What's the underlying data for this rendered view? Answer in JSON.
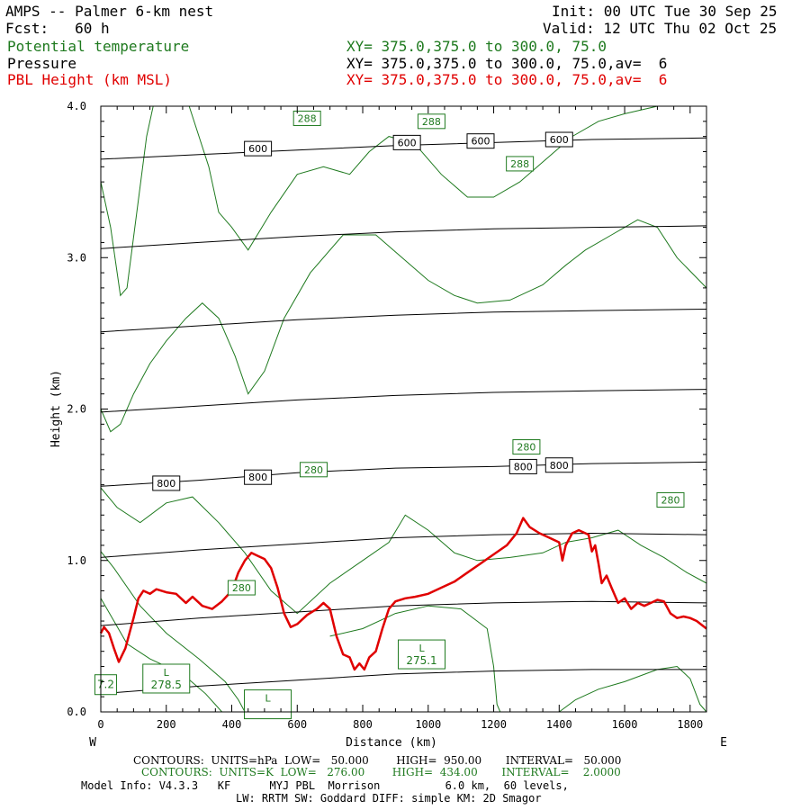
{
  "header": {
    "title": "AMPS -- Palmer 6-km nest",
    "fcst": "Fcst:   60 h",
    "init": "Init: 00 UTC Tue 30 Sep 25",
    "valid": "Valid: 12 UTC Thu 02 Oct 25",
    "fields": [
      {
        "label": "Potential temperature",
        "xy": "XY= 375.0,375.0 to 300.0, 75.0",
        "color": "#1f7a1f"
      },
      {
        "label": "Pressure",
        "xy": "XY= 375.0,375.0 to 300.0, 75.0,av=  6",
        "color": "#000000"
      },
      {
        "label": "PBL Height (km MSL)",
        "xy": "XY= 375.0,375.0 to 300.0, 75.0,av=  6",
        "color": "#e00000"
      }
    ]
  },
  "footer": {
    "contours_black": "CONTOURS:  UNITS=hPa  LOW=   50.000        HIGH=  950.00       INTERVAL=   50.000",
    "contours_green": "CONTOURS:  UNITS=K  LOW=   276.00        HIGH=  434.00       INTERVAL=    2.0000",
    "model_info": "Model Info: V4.3.3   KF      MYJ PBL  Morrison          6.0 km,  60 levels,",
    "model_info2": "LW: RRTM SW: Goddard DIFF: simple KM: 2D Smagor"
  },
  "chart_data": {
    "type": "line",
    "xlabel": "Distance (km)",
    "ylabel": "Height (km)",
    "xlim": [
      0,
      1850
    ],
    "ylim": [
      0,
      4.0
    ],
    "x_ticks": [
      0,
      200,
      400,
      600,
      800,
      1000,
      1200,
      1400,
      1600,
      1800
    ],
    "y_ticks": [
      "0.0",
      "1.0",
      "2.0",
      "3.0",
      "4.0"
    ],
    "left_end": "W",
    "right_end": "E",
    "colors": {
      "pressure": "#000000",
      "theta": "#1f7a1f",
      "pbl": "#e00000"
    },
    "pressure_contours": [
      {
        "points": [
          [
            0,
            0.12
          ],
          [
            300,
            0.17
          ],
          [
            600,
            0.21
          ],
          [
            900,
            0.25
          ],
          [
            1200,
            0.27
          ],
          [
            1500,
            0.28
          ],
          [
            1850,
            0.28
          ]
        ]
      },
      {
        "points": [
          [
            0,
            0.57
          ],
          [
            300,
            0.62
          ],
          [
            600,
            0.66
          ],
          [
            900,
            0.7
          ],
          [
            1200,
            0.72
          ],
          [
            1500,
            0.73
          ],
          [
            1850,
            0.72
          ]
        ]
      },
      {
        "points": [
          [
            0,
            1.02
          ],
          [
            300,
            1.07
          ],
          [
            600,
            1.11
          ],
          [
            900,
            1.15
          ],
          [
            1200,
            1.17
          ],
          [
            1500,
            1.18
          ],
          [
            1850,
            1.17
          ]
        ]
      },
      {
        "points": [
          [
            0,
            1.49
          ],
          [
            300,
            1.53
          ],
          [
            600,
            1.58
          ],
          [
            900,
            1.61
          ],
          [
            1200,
            1.62
          ],
          [
            1500,
            1.64
          ],
          [
            1850,
            1.65
          ]
        ]
      },
      {
        "points": [
          [
            0,
            1.98
          ],
          [
            300,
            2.02
          ],
          [
            600,
            2.06
          ],
          [
            900,
            2.09
          ],
          [
            1200,
            2.11
          ],
          [
            1500,
            2.12
          ],
          [
            1850,
            2.13
          ]
        ]
      },
      {
        "points": [
          [
            0,
            2.51
          ],
          [
            300,
            2.55
          ],
          [
            600,
            2.59
          ],
          [
            900,
            2.62
          ],
          [
            1200,
            2.64
          ],
          [
            1500,
            2.65
          ],
          [
            1850,
            2.66
          ]
        ]
      },
      {
        "points": [
          [
            0,
            3.06
          ],
          [
            300,
            3.1
          ],
          [
            600,
            3.14
          ],
          [
            900,
            3.17
          ],
          [
            1200,
            3.19
          ],
          [
            1500,
            3.2
          ],
          [
            1850,
            3.21
          ]
        ]
      },
      {
        "points": [
          [
            0,
            3.65
          ],
          [
            300,
            3.68
          ],
          [
            600,
            3.71
          ],
          [
            900,
            3.74
          ],
          [
            1200,
            3.76
          ],
          [
            1500,
            3.78
          ],
          [
            1850,
            3.79
          ]
        ]
      }
    ],
    "pressure_labels": [
      {
        "text": "600",
        "x": 480,
        "y": 3.72
      },
      {
        "text": "600",
        "x": 935,
        "y": 3.76
      },
      {
        "text": "600",
        "x": 1160,
        "y": 3.77
      },
      {
        "text": "600",
        "x": 1400,
        "y": 3.78
      },
      {
        "text": "800",
        "x": 200,
        "y": 1.51
      },
      {
        "text": "800",
        "x": 480,
        "y": 1.55
      },
      {
        "text": "800",
        "x": 1290,
        "y": 1.62
      },
      {
        "text": "800",
        "x": 1400,
        "y": 1.63
      }
    ],
    "theta_contours": [
      {
        "points": [
          [
            0,
            1.06
          ],
          [
            40,
            0.95
          ],
          [
            120,
            0.7
          ],
          [
            200,
            0.52
          ],
          [
            300,
            0.35
          ],
          [
            380,
            0.2
          ],
          [
            420,
            0.08
          ],
          [
            440,
            0.0
          ]
        ]
      },
      {
        "points": [
          [
            0,
            1.48
          ],
          [
            50,
            1.35
          ],
          [
            120,
            1.25
          ],
          [
            200,
            1.38
          ],
          [
            280,
            1.42
          ],
          [
            360,
            1.25
          ],
          [
            440,
            1.05
          ],
          [
            520,
            0.8
          ],
          [
            600,
            0.65
          ],
          [
            700,
            0.85
          ],
          [
            800,
            1.0
          ],
          [
            880,
            1.12
          ],
          [
            930,
            1.3
          ],
          [
            1000,
            1.2
          ],
          [
            1080,
            1.05
          ],
          [
            1150,
            1.0
          ],
          [
            1250,
            1.02
          ],
          [
            1350,
            1.05
          ],
          [
            1420,
            1.12
          ],
          [
            1500,
            1.15
          ],
          [
            1580,
            1.2
          ],
          [
            1650,
            1.1
          ],
          [
            1720,
            1.02
          ],
          [
            1790,
            0.92
          ],
          [
            1850,
            0.85
          ]
        ]
      },
      {
        "points": [
          [
            0,
            2.0
          ],
          [
            30,
            1.85
          ],
          [
            60,
            1.9
          ],
          [
            100,
            2.1
          ],
          [
            150,
            2.3
          ],
          [
            200,
            2.45
          ],
          [
            260,
            2.6
          ],
          [
            310,
            2.7
          ],
          [
            360,
            2.6
          ],
          [
            410,
            2.35
          ],
          [
            450,
            2.1
          ],
          [
            500,
            2.25
          ],
          [
            560,
            2.6
          ],
          [
            640,
            2.9
          ],
          [
            740,
            3.15
          ],
          [
            840,
            3.15
          ],
          [
            920,
            3.0
          ],
          [
            1000,
            2.85
          ],
          [
            1080,
            2.75
          ],
          [
            1150,
            2.7
          ],
          [
            1250,
            2.72
          ],
          [
            1350,
            2.82
          ],
          [
            1420,
            2.95
          ],
          [
            1480,
            3.05
          ],
          [
            1560,
            3.15
          ],
          [
            1640,
            3.25
          ],
          [
            1700,
            3.2
          ],
          [
            1760,
            3.0
          ],
          [
            1850,
            2.8
          ]
        ]
      },
      {
        "points": [
          [
            0,
            3.5
          ],
          [
            30,
            3.2
          ],
          [
            60,
            2.75
          ],
          [
            80,
            2.8
          ],
          [
            110,
            3.3
          ],
          [
            140,
            3.8
          ],
          [
            160,
            4.0
          ]
        ]
      },
      {
        "points": [
          [
            270,
            4.0
          ],
          [
            300,
            3.8
          ],
          [
            330,
            3.6
          ],
          [
            360,
            3.3
          ],
          [
            400,
            3.2
          ],
          [
            450,
            3.05
          ],
          [
            520,
            3.3
          ],
          [
            600,
            3.55
          ],
          [
            680,
            3.6
          ],
          [
            760,
            3.55
          ],
          [
            820,
            3.7
          ],
          [
            880,
            3.8
          ],
          [
            960,
            3.75
          ],
          [
            1040,
            3.55
          ],
          [
            1120,
            3.4
          ],
          [
            1200,
            3.4
          ],
          [
            1280,
            3.5
          ],
          [
            1360,
            3.65
          ],
          [
            1440,
            3.8
          ],
          [
            1520,
            3.9
          ],
          [
            1600,
            3.95
          ],
          [
            1700,
            4.0
          ]
        ]
      },
      {
        "points": [
          [
            0,
            0.75
          ],
          [
            40,
            0.6
          ],
          [
            80,
            0.45
          ],
          [
            150,
            0.35
          ],
          [
            250,
            0.25
          ],
          [
            320,
            0.12
          ],
          [
            370,
            0.0
          ]
        ]
      },
      {
        "points": [
          [
            1400,
            0.0
          ],
          [
            1450,
            0.08
          ],
          [
            1520,
            0.15
          ],
          [
            1600,
            0.2
          ],
          [
            1700,
            0.28
          ],
          [
            1760,
            0.3
          ],
          [
            1800,
            0.22
          ],
          [
            1830,
            0.05
          ],
          [
            1850,
            0.0
          ]
        ]
      },
      {
        "points": [
          [
            700,
            0.5
          ],
          [
            800,
            0.55
          ],
          [
            900,
            0.65
          ],
          [
            1000,
            0.7
          ],
          [
            1100,
            0.68
          ],
          [
            1180,
            0.55
          ],
          [
            1200,
            0.3
          ],
          [
            1210,
            0.05
          ],
          [
            1220,
            0.0
          ]
        ]
      }
    ],
    "theta_labels": [
      {
        "text": "288",
        "x": 630,
        "y": 3.92
      },
      {
        "text": "288",
        "x": 1010,
        "y": 3.9
      },
      {
        "text": "288",
        "x": 1280,
        "y": 3.62
      },
      {
        "text": "280",
        "x": 650,
        "y": 1.6
      },
      {
        "text": "280",
        "x": 1300,
        "y": 1.75
      },
      {
        "text": "280",
        "x": 1740,
        "y": 1.4
      },
      {
        "text": "280",
        "x": 430,
        "y": 0.82
      }
    ],
    "lows": [
      {
        "letter": "L",
        "value": "275.1",
        "x": 980,
        "y": 0.38
      },
      {
        "letter": "L",
        "value": "278.5",
        "x": 200,
        "y": 0.22
      },
      {
        "letter": "L",
        "value": "",
        "x": 510,
        "y": 0.05
      },
      {
        "letter": "",
        "value": "7.2",
        "x": 15,
        "y": 0.18
      }
    ],
    "pbl_series": {
      "points": [
        [
          0,
          0.52
        ],
        [
          10,
          0.56
        ],
        [
          25,
          0.52
        ],
        [
          40,
          0.42
        ],
        [
          55,
          0.33
        ],
        [
          75,
          0.42
        ],
        [
          100,
          0.62
        ],
        [
          115,
          0.75
        ],
        [
          130,
          0.8
        ],
        [
          150,
          0.78
        ],
        [
          170,
          0.81
        ],
        [
          200,
          0.79
        ],
        [
          230,
          0.78
        ],
        [
          260,
          0.72
        ],
        [
          280,
          0.76
        ],
        [
          310,
          0.7
        ],
        [
          340,
          0.68
        ],
        [
          370,
          0.73
        ],
        [
          400,
          0.8
        ],
        [
          420,
          0.92
        ],
        [
          440,
          1.0
        ],
        [
          460,
          1.05
        ],
        [
          480,
          1.03
        ],
        [
          500,
          1.01
        ],
        [
          520,
          0.95
        ],
        [
          540,
          0.82
        ],
        [
          560,
          0.65
        ],
        [
          580,
          0.56
        ],
        [
          600,
          0.58
        ],
        [
          630,
          0.64
        ],
        [
          660,
          0.68
        ],
        [
          680,
          0.72
        ],
        [
          700,
          0.68
        ],
        [
          720,
          0.5
        ],
        [
          740,
          0.38
        ],
        [
          760,
          0.36
        ],
        [
          775,
          0.28
        ],
        [
          790,
          0.32
        ],
        [
          805,
          0.28
        ],
        [
          820,
          0.36
        ],
        [
          840,
          0.4
        ],
        [
          860,
          0.55
        ],
        [
          880,
          0.68
        ],
        [
          900,
          0.73
        ],
        [
          930,
          0.75
        ],
        [
          960,
          0.76
        ],
        [
          1000,
          0.78
        ],
        [
          1040,
          0.82
        ],
        [
          1080,
          0.86
        ],
        [
          1120,
          0.92
        ],
        [
          1160,
          0.98
        ],
        [
          1200,
          1.04
        ],
        [
          1240,
          1.1
        ],
        [
          1270,
          1.18
        ],
        [
          1290,
          1.28
        ],
        [
          1310,
          1.22
        ],
        [
          1340,
          1.18
        ],
        [
          1370,
          1.15
        ],
        [
          1400,
          1.12
        ],
        [
          1410,
          1.0
        ],
        [
          1420,
          1.1
        ],
        [
          1440,
          1.18
        ],
        [
          1460,
          1.2
        ],
        [
          1490,
          1.17
        ],
        [
          1500,
          1.06
        ],
        [
          1510,
          1.1
        ],
        [
          1520,
          0.98
        ],
        [
          1530,
          0.85
        ],
        [
          1545,
          0.9
        ],
        [
          1560,
          0.82
        ],
        [
          1580,
          0.72
        ],
        [
          1600,
          0.75
        ],
        [
          1620,
          0.68
        ],
        [
          1640,
          0.72
        ],
        [
          1660,
          0.7
        ],
        [
          1680,
          0.72
        ],
        [
          1700,
          0.74
        ],
        [
          1720,
          0.73
        ],
        [
          1740,
          0.65
        ],
        [
          1760,
          0.62
        ],
        [
          1780,
          0.63
        ],
        [
          1800,
          0.62
        ],
        [
          1820,
          0.6
        ],
        [
          1850,
          0.55
        ]
      ]
    }
  }
}
